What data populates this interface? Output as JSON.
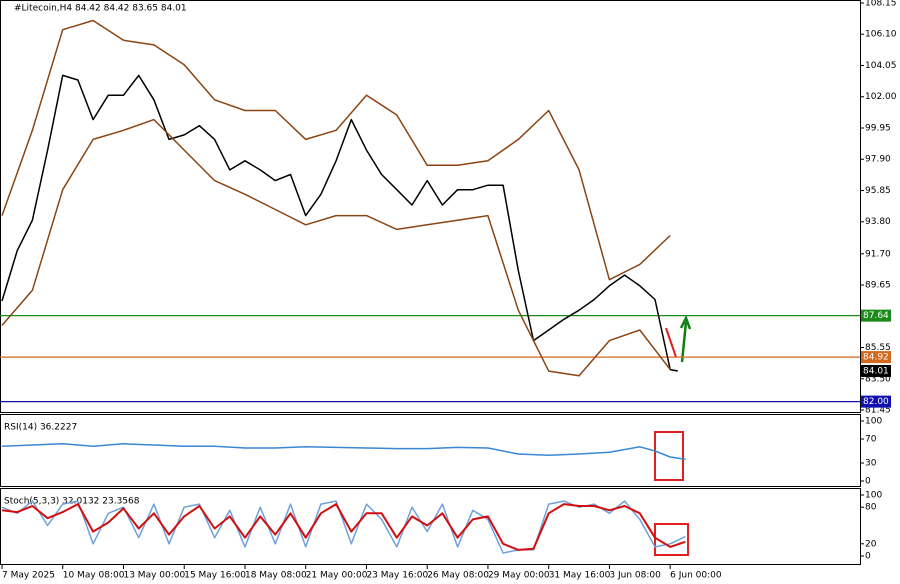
{
  "chart_data": [
    {
      "type": "line",
      "title": "#Litecoin,H4  84.42 84.42 83.65 84.01",
      "xlim": [
        0,
        226
      ],
      "ylim": [
        81.45,
        108.15
      ],
      "xticks": [
        {
          "value": 0,
          "label": "7 May 2025"
        },
        {
          "value": 16,
          "label": "10 May 08:00"
        },
        {
          "value": 32,
          "label": "13 May 00:00"
        },
        {
          "value": 48,
          "label": "15 May 16:00"
        },
        {
          "value": 64,
          "label": "18 May 08:00"
        },
        {
          "value": 80,
          "label": "21 May 00:00"
        },
        {
          "value": 96,
          "label": "23 May 16:00"
        },
        {
          "value": 112,
          "label": "26 May 08:00"
        },
        {
          "value": 128,
          "label": "29 May 00:00"
        },
        {
          "value": 144,
          "label": "31 May 16:00"
        },
        {
          "value": 160,
          "label": "3 Jun 08:00"
        },
        {
          "value": 176,
          "label": "6 Jun 00:00"
        }
      ],
      "yticks": [
        108.15,
        {
          "value": 106.1,
          "label": "106.10"
        },
        104.05,
        {
          "value": 102,
          "label": "102.00"
        },
        99.95,
        {
          "value": 97.9,
          "label": "97.90"
        },
        95.85,
        {
          "value": 93.8,
          "label": "93.80"
        },
        {
          "value": 91.7,
          "label": "91.70"
        },
        89.65,
        85.55,
        {
          "value": 83.5,
          "label": "83.50"
        },
        81.45
      ],
      "levels": [
        {
          "value": 87.64,
          "color": "#1a8a1a",
          "line": true
        },
        {
          "value": 84.92,
          "color": "#d2691e",
          "line": true
        },
        {
          "value": 84.01,
          "color": "#000000",
          "line": false
        },
        {
          "value": {
            "value": 82,
            "label": "82.00"
          },
          "color": "#1010b0",
          "line": true
        }
      ],
      "series": [
        {
          "color": "#000000",
          "x": [
            0,
            4,
            8,
            12,
            16,
            20,
            24,
            28,
            32,
            36,
            40,
            44,
            48,
            52,
            56,
            60,
            64,
            68,
            72,
            76,
            80,
            84,
            88,
            92,
            96,
            100,
            104,
            108,
            112,
            116,
            120,
            124,
            128,
            132,
            136,
            140,
            144,
            148,
            152,
            156,
            160,
            164,
            168,
            172,
            176,
            178
          ],
          "values": [
            88.6,
            91.9,
            93.9,
            98.5,
            103.4,
            103.1,
            100.5,
            102.1,
            102.1,
            103.4,
            101.8,
            99.2,
            99.5,
            100.1,
            99.2,
            97.2,
            97.8,
            97.2,
            96.5,
            96.9,
            94.2,
            95.6,
            97.8,
            100.5,
            98.5,
            96.9,
            95.9,
            94.9,
            96.5,
            94.9,
            95.9,
            95.9,
            96.2,
            96.2,
            90.6,
            86.0,
            86.7,
            87.4,
            88.0,
            88.7,
            89.6,
            90.3,
            89.6,
            88.7,
            84.1,
            84.01
          ]
        },
        {
          "color": "#8b4513",
          "x": [
            0,
            8,
            16,
            24,
            32,
            40,
            48,
            56,
            64,
            72,
            80,
            88,
            96,
            104,
            112,
            120,
            128,
            136,
            144,
            152,
            160,
            168,
            176
          ],
          "values": [
            94.2,
            99.8,
            106.4,
            107.0,
            105.7,
            105.4,
            104.1,
            101.8,
            101.1,
            101.1,
            99.2,
            99.8,
            102.1,
            100.8,
            97.5,
            97.5,
            97.8,
            99.2,
            101.1,
            97.2,
            90.0,
            91.0,
            92.9
          ]
        },
        {
          "color": "#8b4513",
          "x": [
            0,
            8,
            16,
            24,
            32,
            40,
            48,
            56,
            64,
            72,
            80,
            88,
            96,
            104,
            112,
            120,
            128,
            136,
            144,
            152,
            160,
            168,
            176
          ],
          "values": [
            87.0,
            89.3,
            95.9,
            99.2,
            99.8,
            100.5,
            98.5,
            96.5,
            95.6,
            94.6,
            93.6,
            94.2,
            94.2,
            93.3,
            93.6,
            93.9,
            94.2,
            88.0,
            84.0,
            83.7,
            86.0,
            86.7,
            84.1
          ]
        }
      ]
    },
    {
      "type": "line",
      "title": "RSI(14) 36.2227",
      "xlim": [
        0,
        226
      ],
      "ylim": [
        0,
        100
      ],
      "yticks": [
        100,
        70,
        30,
        0
      ],
      "series": [
        {
          "color": "#3a86d4",
          "x": [
            0,
            8,
            16,
            24,
            32,
            40,
            48,
            56,
            64,
            72,
            80,
            88,
            96,
            104,
            112,
            120,
            128,
            136,
            144,
            152,
            160,
            168,
            172,
            176,
            180
          ],
          "values": [
            58,
            60,
            62,
            58,
            62,
            60,
            58,
            58,
            55,
            55,
            57,
            56,
            55,
            54,
            54,
            56,
            55,
            45,
            43,
            45,
            48,
            57,
            50,
            40,
            36.2227
          ]
        }
      ]
    },
    {
      "type": "line",
      "title": "Stoch(5,3,3) 32.0132 23.3568",
      "xlim": [
        0,
        226
      ],
      "ylim": [
        0,
        100
      ],
      "yticks": [
        100,
        80,
        20,
        0
      ],
      "series": [
        {
          "color": "#6fa0dc",
          "x": [
            0,
            4,
            8,
            12,
            16,
            20,
            24,
            28,
            32,
            36,
            40,
            44,
            48,
            52,
            56,
            60,
            64,
            68,
            72,
            76,
            80,
            84,
            88,
            92,
            96,
            100,
            104,
            108,
            112,
            116,
            120,
            124,
            128,
            132,
            136,
            140,
            144,
            148,
            152,
            156,
            160,
            164,
            168,
            172,
            176,
            180
          ],
          "values": [
            80,
            70,
            90,
            50,
            85,
            90,
            20,
            70,
            80,
            30,
            85,
            20,
            80,
            85,
            30,
            75,
            15,
            80,
            20,
            85,
            15,
            85,
            90,
            20,
            85,
            60,
            15,
            80,
            40,
            85,
            15,
            75,
            60,
            5,
            10,
            10,
            85,
            90,
            80,
            85,
            70,
            90,
            60,
            15,
            20,
            32.0132
          ]
        },
        {
          "color": "#d01010",
          "x": [
            0,
            4,
            8,
            12,
            16,
            20,
            24,
            28,
            32,
            36,
            40,
            44,
            48,
            52,
            56,
            60,
            64,
            68,
            72,
            76,
            80,
            84,
            88,
            92,
            96,
            100,
            104,
            108,
            112,
            116,
            120,
            124,
            128,
            132,
            136,
            140,
            144,
            148,
            152,
            156,
            160,
            164,
            168,
            172,
            176,
            180
          ],
          "values": [
            75,
            72,
            82,
            62,
            72,
            85,
            40,
            55,
            78,
            45,
            70,
            35,
            65,
            82,
            45,
            65,
            30,
            65,
            35,
            70,
            30,
            70,
            85,
            40,
            70,
            70,
            30,
            65,
            50,
            70,
            30,
            60,
            65,
            20,
            10,
            12,
            70,
            85,
            82,
            82,
            75,
            82,
            70,
            30,
            15,
            23.3568
          ]
        }
      ]
    }
  ]
}
